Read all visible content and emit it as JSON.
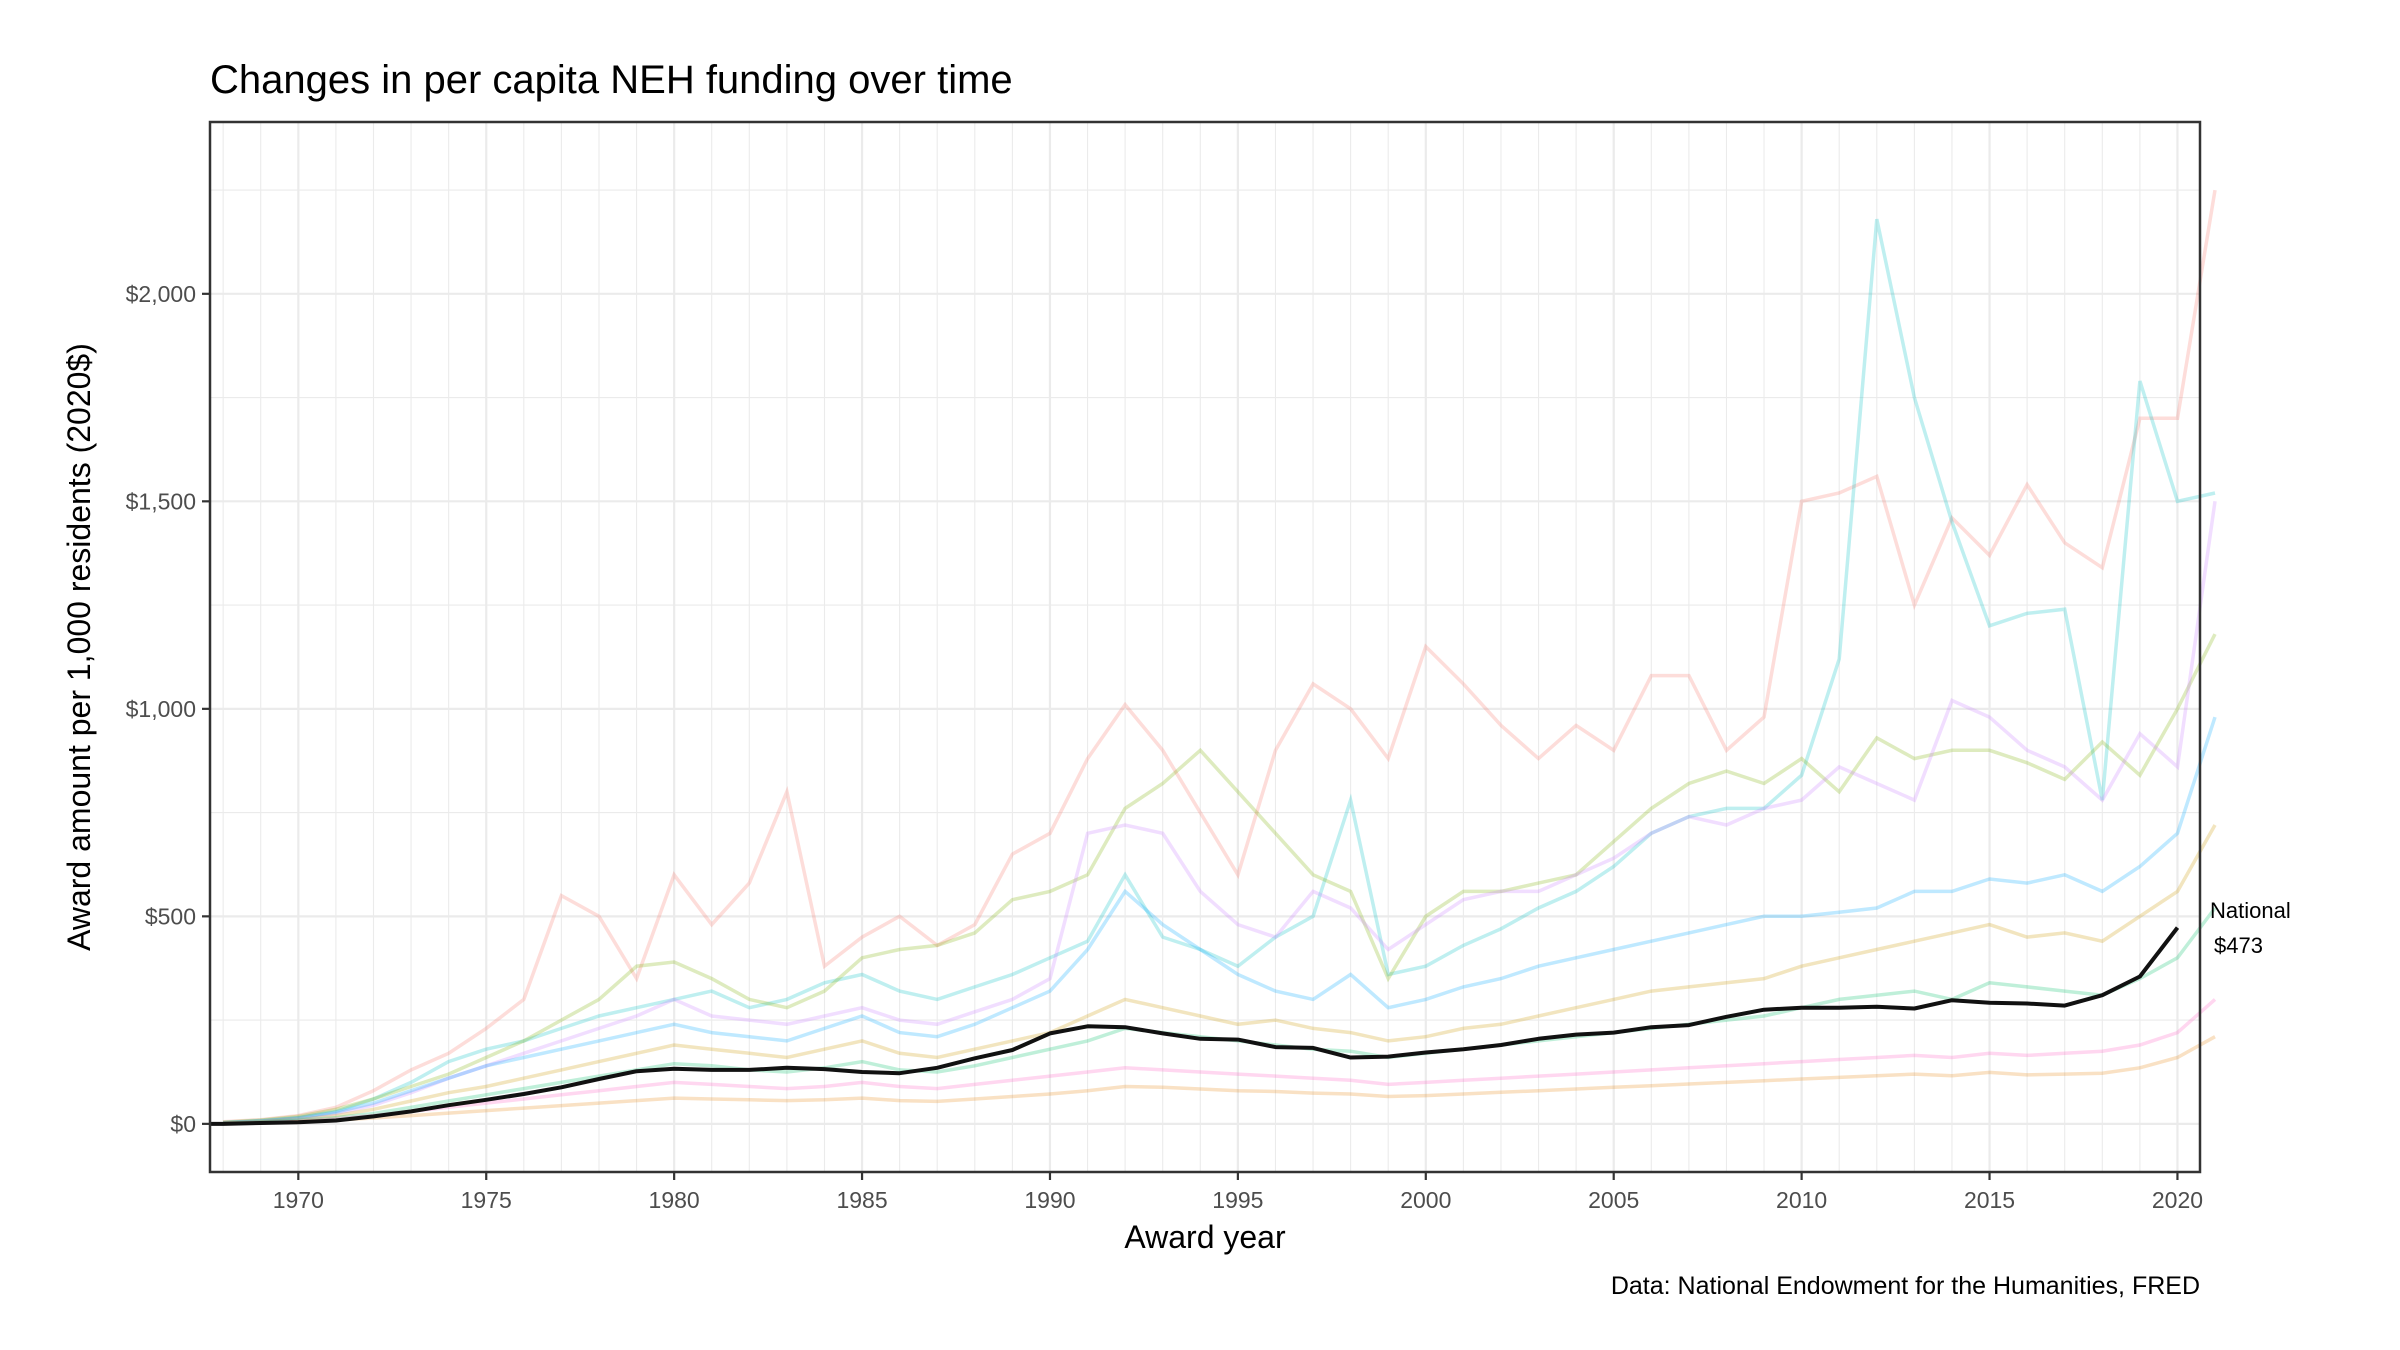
{
  "chart_data": {
    "type": "line",
    "title": "Changes in per capita NEH funding over time",
    "xlabel": "Award year",
    "ylabel": "Award amount per 1,000 residents (2020$)",
    "caption": "Data: National Endowment for the Humanities, FRED",
    "xlim": [
      1967.65,
      2020.6
    ],
    "ylim": [
      -116,
      2414
    ],
    "x_ticks": [
      1970,
      1975,
      1980,
      1985,
      1990,
      1995,
      2000,
      2005,
      2010,
      2015,
      2020
    ],
    "x_tick_labels": [
      "1970",
      "1975",
      "1980",
      "1985",
      "1990",
      "1995",
      "2000",
      "2005",
      "2010",
      "2015",
      "2020"
    ],
    "y_ticks": [
      0,
      500,
      1000,
      1500,
      2000
    ],
    "y_tick_labels": [
      "$0",
      "$500",
      "$1,000",
      "$1,500",
      "$2,000"
    ],
    "grid": true,
    "national": {
      "label": "National",
      "value_label": "$473",
      "color": "#111111",
      "x": [
        1967,
        1968,
        1969,
        1970,
        1971,
        1972,
        1973,
        1974,
        1975,
        1976,
        1977,
        1978,
        1979,
        1980,
        1981,
        1982,
        1983,
        1984,
        1985,
        1986,
        1987,
        1988,
        1989,
        1990,
        1991,
        1992,
        1993,
        1994,
        1995,
        1996,
        1997,
        1998,
        1999,
        2000,
        2001,
        2002,
        2003,
        2004,
        2005,
        2006,
        2007,
        2008,
        2009,
        2010,
        2011,
        2012,
        2013,
        2014,
        2015,
        2016,
        2017,
        2018,
        2019,
        2020
      ],
      "y": [
        0,
        0,
        2,
        4,
        8,
        18,
        30,
        45,
        58,
        72,
        88,
        108,
        127,
        133,
        130,
        130,
        135,
        132,
        125,
        122,
        135,
        158,
        178,
        218,
        235,
        233,
        218,
        205,
        203,
        185,
        183,
        160,
        162,
        172,
        180,
        190,
        205,
        215,
        220,
        233,
        238,
        258,
        275,
        280,
        280,
        282,
        278,
        298,
        292,
        290,
        285,
        310,
        355,
        473
      ]
    },
    "state_series_x_start": 1968,
    "state_series": [
      {
        "color": "#F8766D",
        "y": [
          5,
          10,
          20,
          40,
          80,
          130,
          170,
          230,
          300,
          550,
          500,
          350,
          600,
          480,
          580,
          800,
          380,
          450,
          500,
          430,
          480,
          650,
          700,
          880,
          1010,
          900,
          750,
          600,
          900,
          1060,
          1000,
          880,
          1150,
          1060,
          960,
          880,
          960,
          900,
          1080,
          1080,
          900,
          980,
          1500,
          1520,
          1560,
          1250,
          1460,
          1370,
          1540,
          1400,
          1340,
          1700,
          1700,
          2250
        ]
      },
      {
        "color": "#00BFC4",
        "y": [
          3,
          8,
          15,
          30,
          60,
          100,
          150,
          180,
          200,
          230,
          260,
          280,
          300,
          320,
          280,
          300,
          340,
          360,
          320,
          300,
          330,
          360,
          400,
          440,
          600,
          450,
          420,
          380,
          450,
          500,
          780,
          360,
          380,
          430,
          470,
          520,
          560,
          620,
          700,
          740,
          760,
          760,
          840,
          1120,
          2180,
          1750,
          1450,
          1200,
          1230,
          1240,
          780,
          1790,
          1500,
          1520
        ]
      },
      {
        "color": "#7CAE00",
        "y": [
          4,
          9,
          18,
          35,
          60,
          90,
          120,
          160,
          200,
          250,
          300,
          380,
          390,
          350,
          300,
          280,
          320,
          400,
          420,
          430,
          460,
          540,
          560,
          600,
          760,
          820,
          900,
          800,
          700,
          600,
          560,
          350,
          500,
          560,
          560,
          580,
          600,
          680,
          760,
          820,
          850,
          820,
          880,
          800,
          930,
          880,
          900,
          900,
          870,
          830,
          920,
          840,
          1000,
          1180
        ]
      },
      {
        "color": "#C77CFF",
        "y": [
          2,
          6,
          12,
          25,
          45,
          75,
          110,
          140,
          170,
          200,
          230,
          260,
          300,
          260,
          250,
          240,
          260,
          280,
          250,
          240,
          270,
          300,
          350,
          700,
          720,
          700,
          560,
          480,
          450,
          560,
          520,
          420,
          480,
          540,
          560,
          560,
          600,
          640,
          700,
          740,
          720,
          760,
          780,
          860,
          820,
          780,
          1020,
          980,
          900,
          860,
          780,
          940,
          860,
          1500
        ]
      },
      {
        "color": "#00A9FF",
        "y": [
          3,
          7,
          14,
          28,
          50,
          80,
          110,
          140,
          160,
          180,
          200,
          220,
          240,
          220,
          210,
          200,
          230,
          260,
          220,
          210,
          240,
          280,
          320,
          420,
          560,
          480,
          420,
          360,
          320,
          300,
          360,
          280,
          300,
          330,
          350,
          380,
          400,
          420,
          440,
          460,
          480,
          500,
          500,
          510,
          520,
          560,
          560,
          590,
          580,
          600,
          560,
          620,
          700,
          980
        ]
      },
      {
        "color": "#CD9600",
        "y": [
          2,
          5,
          10,
          20,
          35,
          55,
          75,
          90,
          110,
          130,
          150,
          170,
          190,
          180,
          170,
          160,
          180,
          200,
          170,
          160,
          180,
          200,
          220,
          260,
          300,
          280,
          260,
          240,
          250,
          230,
          220,
          200,
          210,
          230,
          240,
          260,
          280,
          300,
          320,
          330,
          340,
          350,
          380,
          400,
          420,
          440,
          460,
          480,
          450,
          460,
          440,
          500,
          560,
          720
        ]
      },
      {
        "color": "#00BE67",
        "y": [
          1,
          4,
          8,
          15,
          25,
          40,
          55,
          70,
          85,
          100,
          115,
          130,
          145,
          140,
          130,
          125,
          135,
          150,
          130,
          125,
          140,
          160,
          180,
          200,
          230,
          220,
          210,
          200,
          190,
          180,
          175,
          160,
          170,
          180,
          190,
          200,
          210,
          220,
          230,
          240,
          250,
          260,
          280,
          300,
          310,
          320,
          300,
          340,
          330,
          320,
          310,
          350,
          400,
          520
        ]
      },
      {
        "color": "#FF61C3",
        "y": [
          1,
          3,
          6,
          12,
          20,
          30,
          40,
          50,
          60,
          70,
          80,
          90,
          100,
          95,
          90,
          85,
          90,
          100,
          90,
          85,
          95,
          105,
          115,
          125,
          135,
          130,
          125,
          120,
          115,
          110,
          105,
          95,
          100,
          105,
          110,
          115,
          120,
          125,
          130,
          135,
          140,
          145,
          150,
          155,
          160,
          165,
          160,
          170,
          165,
          170,
          175,
          190,
          220,
          300
        ]
      },
      {
        "color": "#E68613",
        "y": [
          1,
          2,
          5,
          9,
          14,
          20,
          26,
          32,
          38,
          44,
          50,
          56,
          62,
          60,
          58,
          56,
          58,
          62,
          56,
          54,
          60,
          66,
          72,
          80,
          90,
          88,
          84,
          80,
          78,
          74,
          72,
          66,
          68,
          72,
          76,
          80,
          84,
          88,
          92,
          96,
          100,
          104,
          108,
          112,
          116,
          120,
          116,
          124,
          118,
          120,
          122,
          135,
          160,
          210
        ]
      }
    ]
  }
}
